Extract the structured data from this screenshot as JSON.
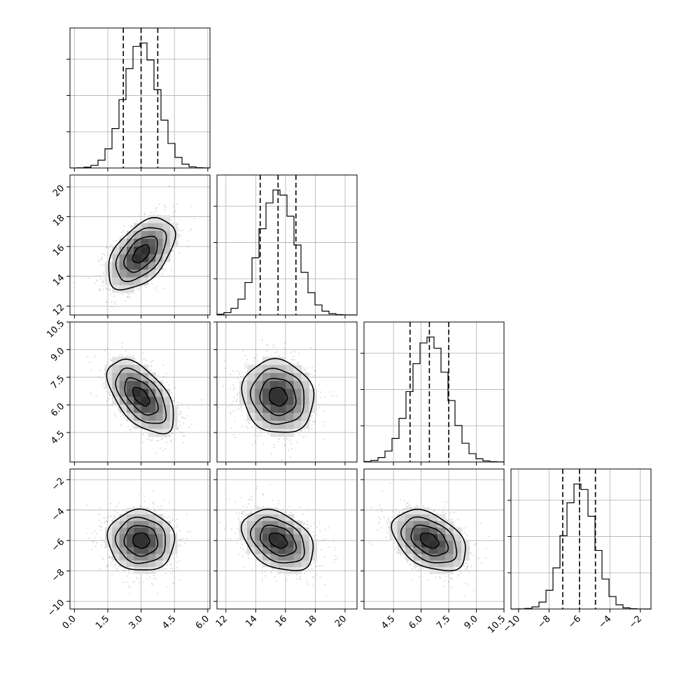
{
  "chart_data": {
    "type": "corner",
    "grid": true,
    "parameters": [
      {
        "index": 0,
        "mean": 3.0,
        "sd": 0.75,
        "quantiles": [
          2.2,
          3.0,
          3.75
        ],
        "range": [
          -0.2,
          6.1
        ],
        "ticks": [
          0.0,
          1.5,
          3.0,
          4.5,
          6.0
        ],
        "tick_labels": [
          "0.0",
          "1.5",
          "3.0",
          "4.5",
          "6.0"
        ]
      },
      {
        "index": 1,
        "mean": 15.5,
        "sd": 1.2,
        "quantiles": [
          14.3,
          15.5,
          16.7
        ],
        "range": [
          11.4,
          20.8
        ],
        "ticks": [
          12,
          14,
          16,
          18,
          20
        ],
        "tick_labels": [
          "12",
          "14",
          "16",
          "18",
          "20"
        ]
      },
      {
        "index": 2,
        "mean": 6.45,
        "sd": 1.0,
        "quantiles": [
          5.4,
          6.45,
          7.5
        ],
        "range": [
          2.9,
          10.5
        ],
        "ticks": [
          4.5,
          6.0,
          7.5,
          9.0,
          10.5
        ],
        "tick_labels": [
          "4.5",
          "6.0",
          "7.5",
          "9.0",
          "10.5"
        ]
      },
      {
        "index": 3,
        "mean": -6.0,
        "sd": 1.0,
        "quantiles": [
          -7.1,
          -6.0,
          -4.95
        ],
        "range": [
          -10.5,
          -1.3
        ],
        "ticks": [
          -10,
          -8,
          -6,
          -4,
          -2
        ],
        "tick_labels": [
          "−10",
          "−8",
          "−6",
          "−4",
          "−2"
        ]
      }
    ],
    "correlations": [
      {
        "pair": [
          0,
          1
        ],
        "rho": 0.5
      },
      {
        "pair": [
          0,
          2
        ],
        "rho": -0.55
      },
      {
        "pair": [
          0,
          3
        ],
        "rho": -0.05
      },
      {
        "pair": [
          1,
          2
        ],
        "rho": -0.1
      },
      {
        "pair": [
          1,
          3
        ],
        "rho": -0.35
      },
      {
        "pair": [
          2,
          3
        ],
        "rho": -0.4
      }
    ],
    "contour_levels_sigma": [
      0.5,
      1.0,
      1.5,
      2.0
    ]
  }
}
